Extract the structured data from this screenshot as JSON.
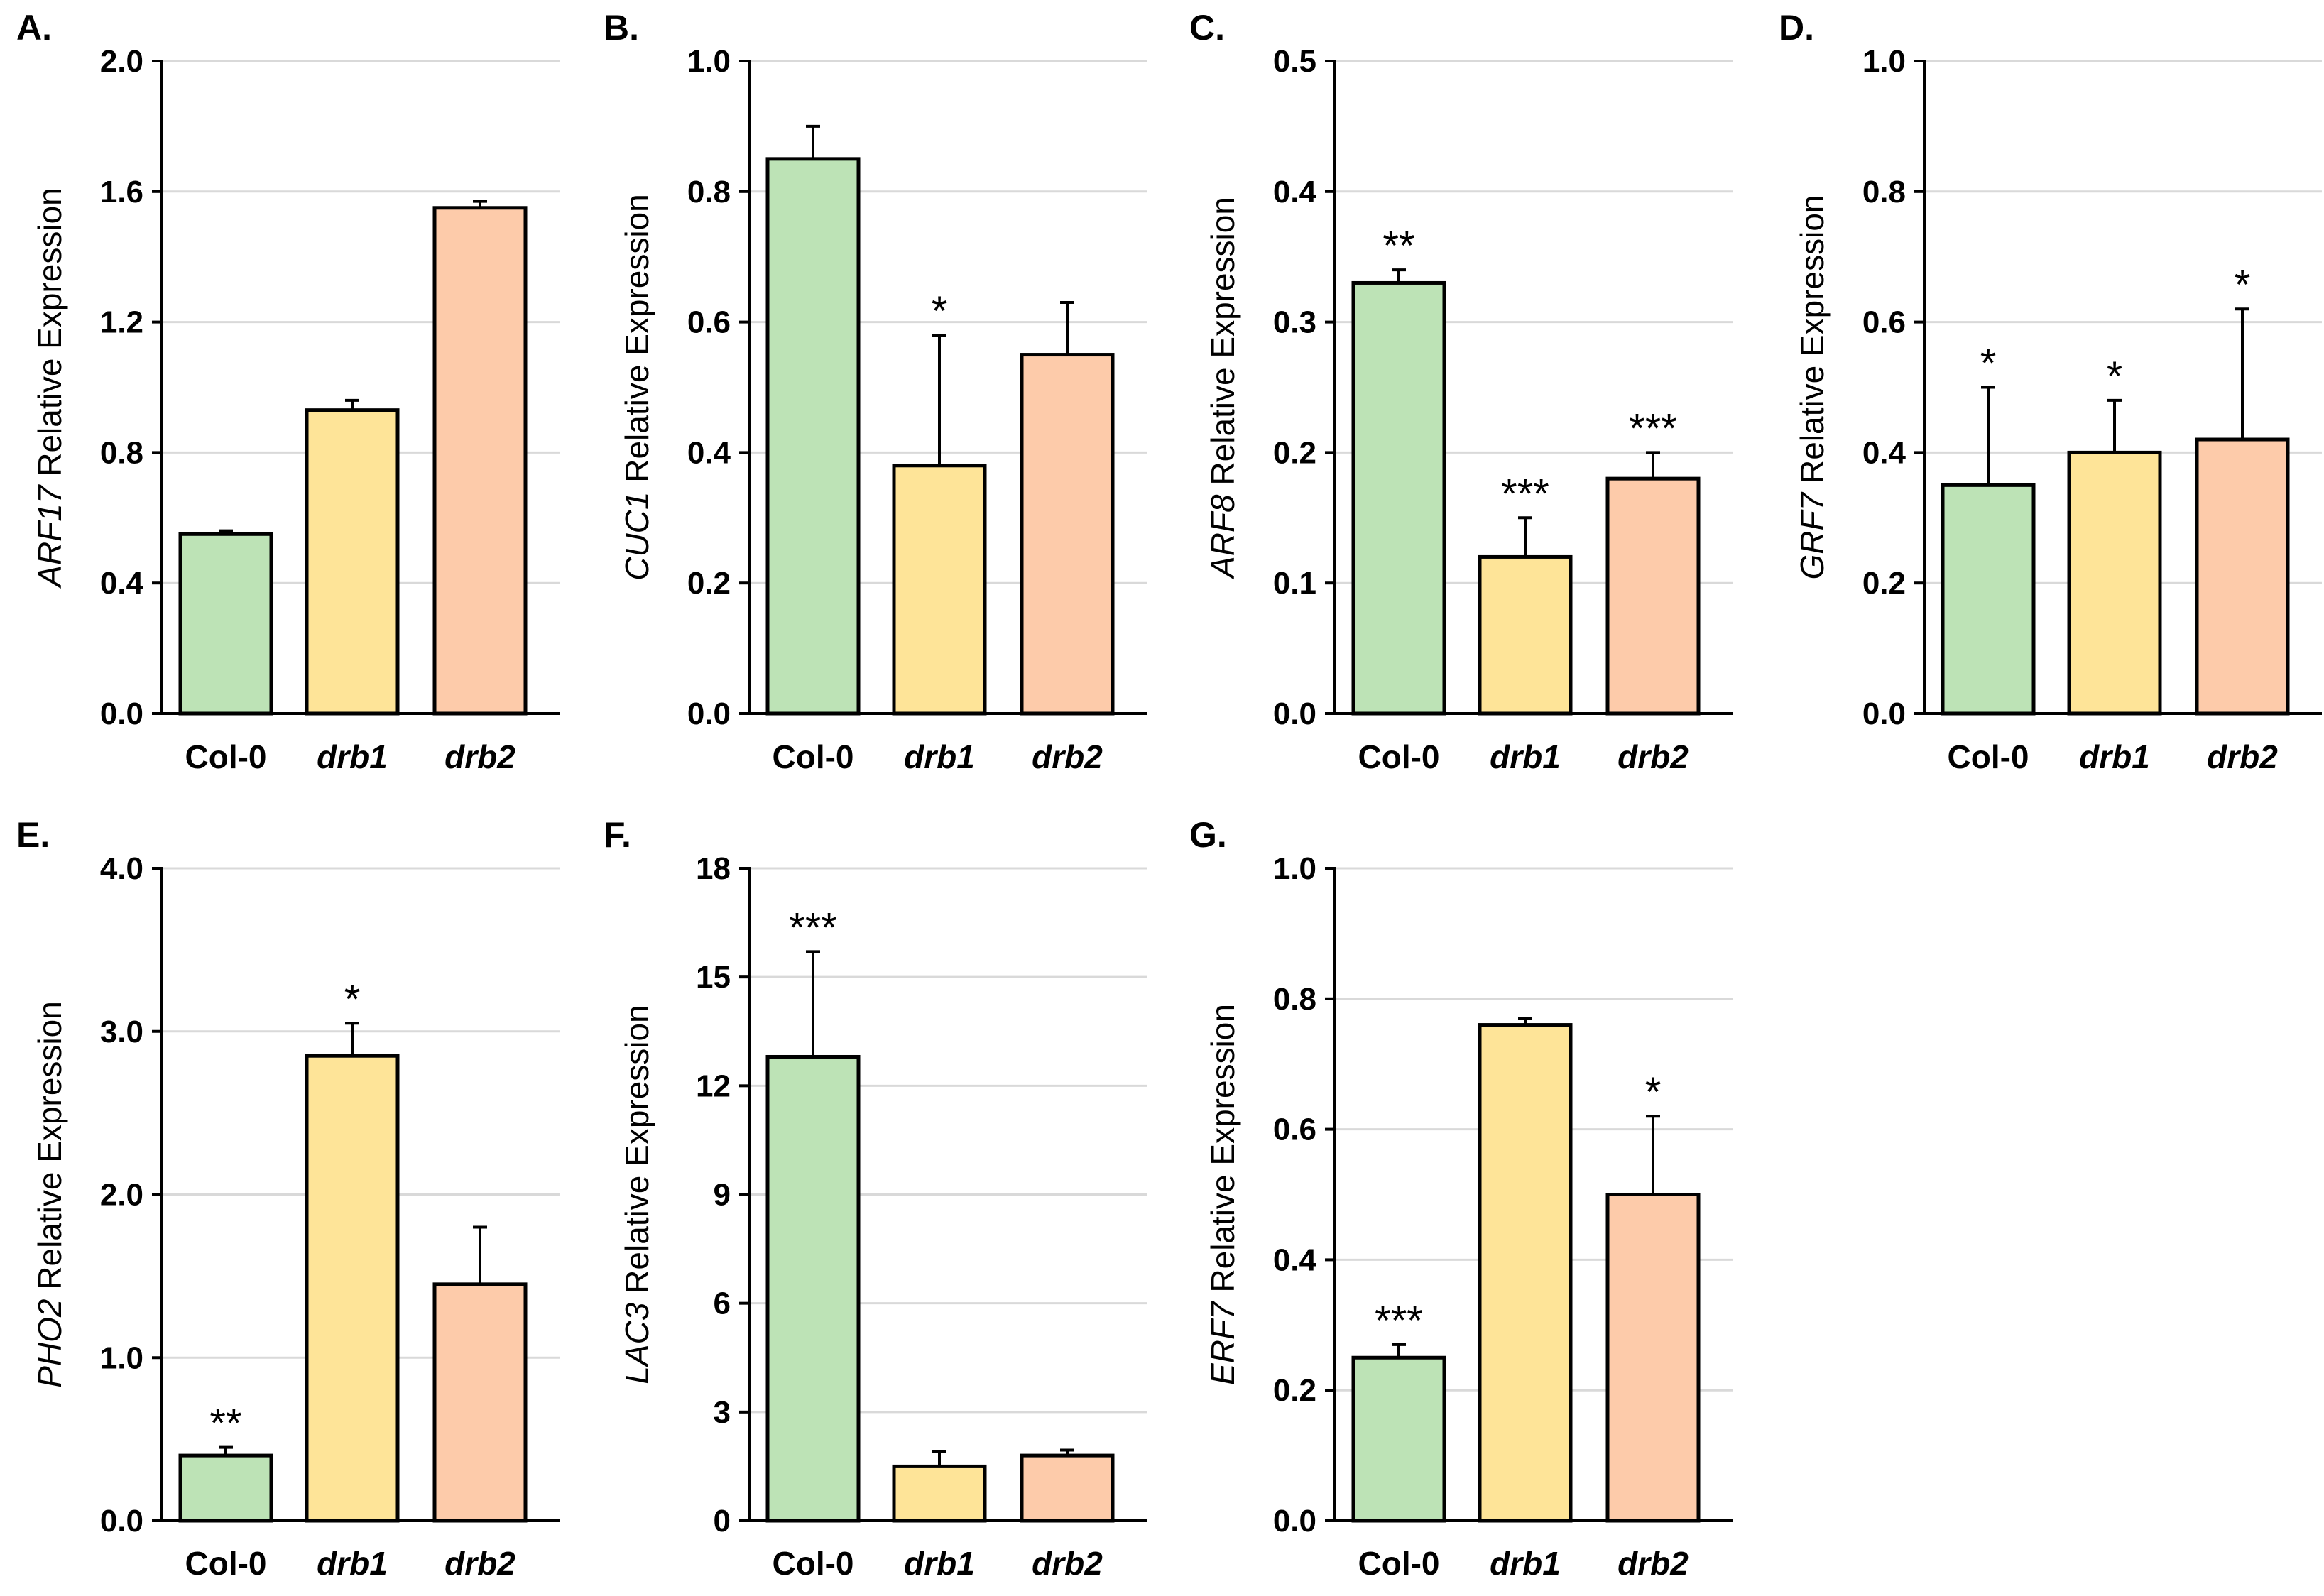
{
  "colors": {
    "Col-0": "#bde3b6",
    "drb1": "#fee498",
    "drb2": "#fdcbaa",
    "gridline": "#d9d9d9",
    "axis": "#000000"
  },
  "chart_data": [
    {
      "type": "bar",
      "panel": "A.",
      "gene": "ARF17",
      "ylabel_suffix": "Relative Expression",
      "categories": [
        "Col-0",
        "drb1",
        "drb2"
      ],
      "values": [
        0.55,
        0.93,
        1.55
      ],
      "errors": [
        0.01,
        0.03,
        0.02
      ],
      "significance": [
        "",
        "",
        ""
      ],
      "ylim": [
        0,
        2.0
      ],
      "yticks": [
        "0.0",
        "0.4",
        "0.8",
        "1.2",
        "1.6",
        "2.0"
      ],
      "grid": true
    },
    {
      "type": "bar",
      "panel": "B.",
      "gene": "CUC1",
      "ylabel_suffix": "Relative Expression",
      "categories": [
        "Col-0",
        "drb1",
        "drb2"
      ],
      "values": [
        0.85,
        0.38,
        0.55
      ],
      "errors": [
        0.05,
        0.2,
        0.08
      ],
      "significance": [
        "",
        "*",
        ""
      ],
      "ylim": [
        0,
        1.0
      ],
      "yticks": [
        "0.0",
        "0.2",
        "0.4",
        "0.6",
        "0.8",
        "1.0"
      ],
      "grid": true
    },
    {
      "type": "bar",
      "panel": "C.",
      "gene": "ARF8",
      "ylabel_suffix": "Relative Expression",
      "categories": [
        "Col-0",
        "drb1",
        "drb2"
      ],
      "values": [
        0.33,
        0.12,
        0.18
      ],
      "errors": [
        0.01,
        0.03,
        0.02
      ],
      "significance": [
        "**",
        "***",
        "***"
      ],
      "ylim": [
        0,
        0.5
      ],
      "yticks": [
        "0.0",
        "0.1",
        "0.2",
        "0.3",
        "0.4",
        "0.5"
      ],
      "grid": true
    },
    {
      "type": "bar",
      "panel": "D.",
      "gene": "GRF7",
      "ylabel_suffix": "Relative Expression",
      "categories": [
        "Col-0",
        "drb1",
        "drb2"
      ],
      "values": [
        0.35,
        0.4,
        0.42
      ],
      "errors": [
        0.15,
        0.08,
        0.2
      ],
      "significance": [
        "*",
        "*",
        "*"
      ],
      "ylim": [
        0,
        1.0
      ],
      "yticks": [
        "0.0",
        "0.2",
        "0.4",
        "0.6",
        "0.8",
        "1.0"
      ],
      "grid": true
    },
    {
      "type": "bar",
      "panel": "E.",
      "gene": "PHO2",
      "ylabel_suffix": "Relative Expression",
      "categories": [
        "Col-0",
        "drb1",
        "drb2"
      ],
      "values": [
        0.4,
        2.85,
        1.45
      ],
      "errors": [
        0.05,
        0.2,
        0.35
      ],
      "significance": [
        "**",
        "*",
        ""
      ],
      "ylim": [
        0,
        4.0
      ],
      "yticks": [
        "0.0",
        "1.0",
        "2.0",
        "3.0",
        "4.0"
      ],
      "grid": true
    },
    {
      "type": "bar",
      "panel": "F.",
      "gene": "LAC3",
      "ylabel_suffix": "Relative Expression",
      "categories": [
        "Col-0",
        "drb1",
        "drb2"
      ],
      "values": [
        12.8,
        1.5,
        1.8
      ],
      "errors": [
        2.9,
        0.4,
        0.15
      ],
      "significance": [
        "***",
        "",
        ""
      ],
      "ylim": [
        0,
        18
      ],
      "yticks": [
        "0",
        "3",
        "6",
        "9",
        "12",
        "15",
        "18"
      ],
      "grid": true
    },
    {
      "type": "bar",
      "panel": "G.",
      "gene": "ERF7",
      "ylabel_suffix": "Relative Expression",
      "categories": [
        "Col-0",
        "drb1",
        "drb2"
      ],
      "values": [
        0.25,
        0.76,
        0.5
      ],
      "errors": [
        0.02,
        0.01,
        0.12
      ],
      "significance": [
        "***",
        "",
        "*"
      ],
      "ylim": [
        0,
        1.0
      ],
      "yticks": [
        "0.0",
        "0.2",
        "0.4",
        "0.6",
        "0.8",
        "1.0"
      ],
      "grid": true
    }
  ]
}
